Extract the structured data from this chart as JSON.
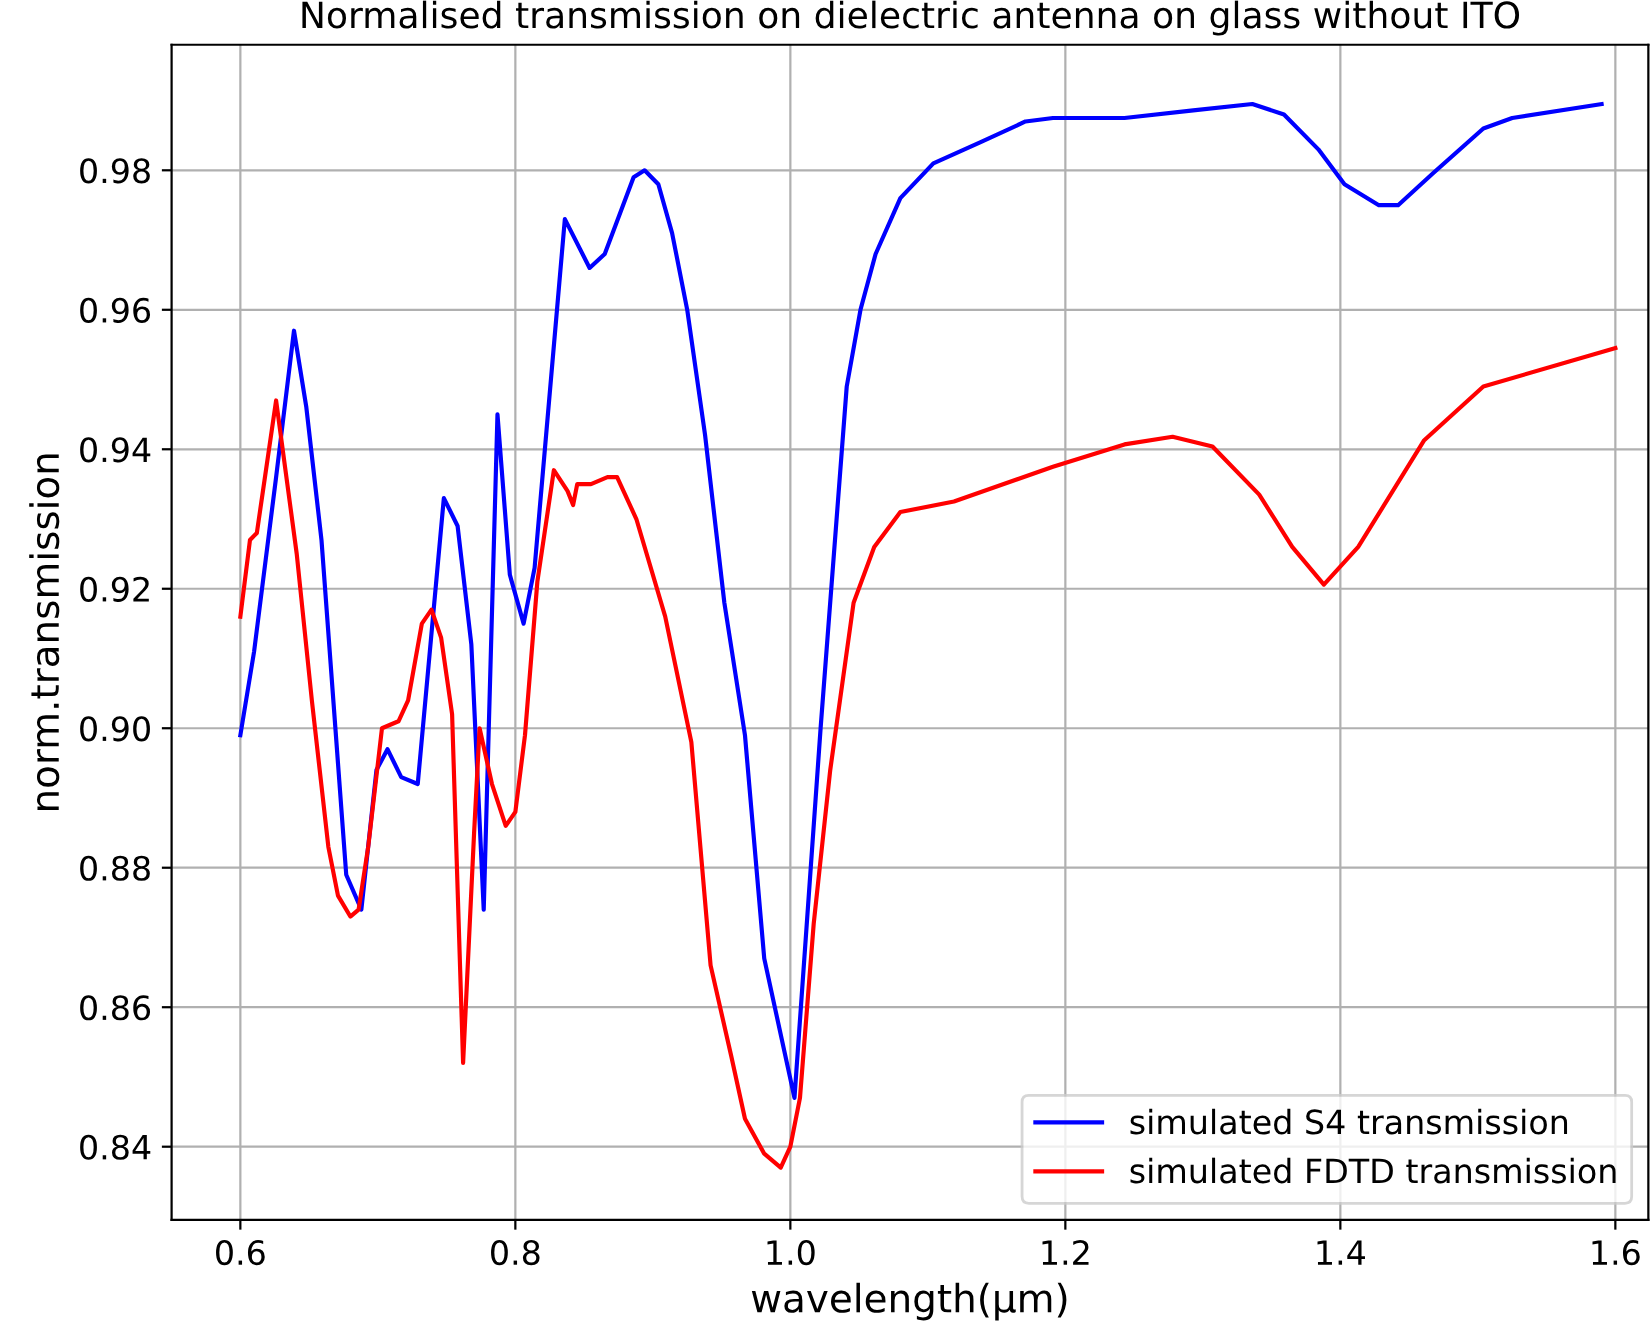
{
  "chart_data": {
    "type": "line",
    "title": "Normalised transmission on dielectric antenna on glass without ITO",
    "xlabel": "wavelength(µm)",
    "ylabel": "norm.transmission",
    "xlim": [
      0.55,
      1.624
    ],
    "ylim": [
      0.8295,
      0.998
    ],
    "xticks": [
      0.6,
      0.8,
      {
        "value": 1.0,
        "label": "1.0"
      },
      1.2,
      1.4,
      1.6
    ],
    "yticks": [
      0.84,
      0.86,
      0.88,
      {
        "value": 0.9,
        "label": "0.90"
      },
      0.92,
      0.94,
      0.96,
      0.98
    ],
    "grid": true,
    "legend": "bottom right",
    "line_style": "solid",
    "marker": "none",
    "series": [
      {
        "name": "simulated S4 transmission",
        "color": "#0000ff",
        "x": [
          0.6,
          0.61,
          0.626,
          0.639,
          0.648,
          0.659,
          0.677,
          0.688,
          0.699,
          0.707,
          0.717,
          0.729,
          0.748,
          0.758,
          0.768,
          0.777,
          0.787,
          0.796,
          0.806,
          0.814,
          0.836,
          0.854,
          0.865,
          0.886,
          0.894,
          0.904,
          0.914,
          0.925,
          0.938,
          0.952,
          0.967,
          0.981,
          1.003,
          1.022,
          1.041,
          1.051,
          1.062,
          1.08,
          1.104,
          1.138,
          1.171,
          1.191,
          1.243,
          1.293,
          1.336,
          1.359,
          1.384,
          1.403,
          1.428,
          1.442,
          1.467,
          1.504,
          1.525,
          1.59
        ],
        "values": [
          0.899,
          0.911,
          0.936,
          0.957,
          0.946,
          0.927,
          0.879,
          0.874,
          0.894,
          0.897,
          0.893,
          0.892,
          0.933,
          0.929,
          0.912,
          0.874,
          0.945,
          0.922,
          0.915,
          0.923,
          0.973,
          0.966,
          0.968,
          0.979,
          0.98,
          0.978,
          0.971,
          0.96,
          0.942,
          0.918,
          0.899,
          0.867,
          0.847,
          0.9,
          0.949,
          0.96,
          0.968,
          0.976,
          0.981,
          0.984,
          0.987,
          0.9875,
          0.9875,
          0.9886,
          0.9895,
          0.988,
          0.983,
          0.978,
          0.975,
          0.975,
          0.9795,
          0.986,
          0.9875,
          0.9895
        ]
      },
      {
        "name": "simulated FDTD transmission",
        "color": "#ff0000",
        "x": [
          0.6,
          0.607,
          0.612,
          0.626,
          0.641,
          0.652,
          0.664,
          0.671,
          0.68,
          0.686,
          0.693,
          0.703,
          0.715,
          0.722,
          0.732,
          0.739,
          0.746,
          0.754,
          0.762,
          0.77,
          0.774,
          0.783,
          0.793,
          0.8,
          0.807,
          0.816,
          0.828,
          0.838,
          0.842,
          0.845,
          0.855,
          0.867,
          0.874,
          0.888,
          0.909,
          0.928,
          0.942,
          0.957,
          0.967,
          0.981,
          0.993,
          1.0,
          1.007,
          1.017,
          1.029,
          1.046,
          1.061,
          1.08,
          1.119,
          1.191,
          1.243,
          1.278,
          1.307,
          1.341,
          1.365,
          1.388,
          1.413,
          1.461,
          1.504,
          1.6
        ],
        "values": [
          0.916,
          0.927,
          0.928,
          0.947,
          0.925,
          0.904,
          0.883,
          0.876,
          0.873,
          0.874,
          0.883,
          0.9,
          0.901,
          0.904,
          0.915,
          0.917,
          0.913,
          0.902,
          0.852,
          0.885,
          0.9,
          0.892,
          0.886,
          0.888,
          0.899,
          0.921,
          0.937,
          0.934,
          0.932,
          0.935,
          0.935,
          0.936,
          0.936,
          0.93,
          0.916,
          0.898,
          0.866,
          0.853,
          0.844,
          0.839,
          0.837,
          0.84,
          0.847,
          0.872,
          0.894,
          0.918,
          0.926,
          0.931,
          0.9325,
          0.9375,
          0.9407,
          0.9418,
          0.9404,
          0.9335,
          0.926,
          0.9206,
          0.926,
          0.9413,
          0.949,
          0.9545
        ]
      }
    ]
  }
}
